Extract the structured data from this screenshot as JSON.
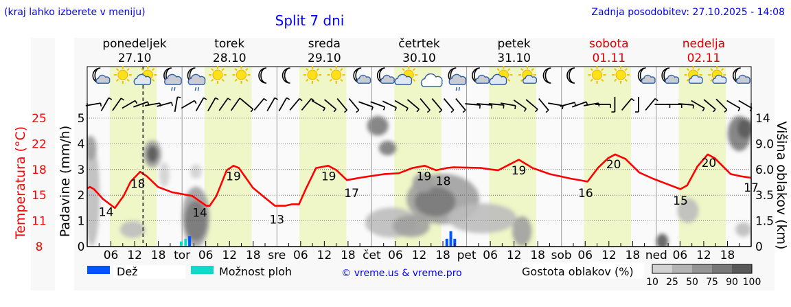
{
  "header": {
    "hint": "(kraj lahko izberete v meniju)",
    "title": "Split 7 dni",
    "updated": "Zadnja posodobitev: 27.10.2025 - 14:08"
  },
  "colors": {
    "rain": "#0055ff",
    "showers": "#11d9c9",
    "temp": "#ff0000",
    "day_band": "#eff7c8",
    "link": "#0000ff",
    "weekend": "#dd0000"
  },
  "chart_data": {
    "type": "line",
    "title": "Split 7 dni",
    "days": [
      {
        "name": "ponedeljek",
        "date": "27.10",
        "abbr": "",
        "weekend": false
      },
      {
        "name": "torek",
        "date": "28.10",
        "abbr": "tor",
        "weekend": false
      },
      {
        "name": "sreda",
        "date": "29.10",
        "abbr": "sre",
        "weekend": false
      },
      {
        "name": "četrtek",
        "date": "30.10",
        "abbr": "čet",
        "weekend": false
      },
      {
        "name": "petek",
        "date": "31.10",
        "abbr": "pet",
        "weekend": false
      },
      {
        "name": "sobota",
        "date": "01.11",
        "abbr": "sob",
        "weekend": true
      },
      {
        "name": "nedelja",
        "date": "02.11",
        "abbr": "ned",
        "weekend": true
      }
    ],
    "hour_ticks": [
      "06",
      "12",
      "18"
    ],
    "now_hour": 14.13,
    "daylight_hours": [
      5.7,
      17.6
    ],
    "y_left_temp": {
      "label": "Temperatura (°C)",
      "ticks": [
        "8",
        "11",
        "15",
        "18",
        "22",
        "25"
      ],
      "range": [
        8,
        25
      ]
    },
    "y_precip": {
      "label": "Padavine (mm/h)",
      "ticks": [
        "0",
        "1",
        "2",
        "3",
        "4",
        "5"
      ],
      "range": [
        0,
        5.2
      ]
    },
    "y_right_cloud": {
      "label": "Višina oblakov (km)",
      "ticks": [
        "0",
        "1.5",
        "3.5",
        "6.0",
        "9.0",
        "14"
      ],
      "km_values": [
        0,
        1.5,
        3.5,
        6,
        9,
        14
      ]
    },
    "temperature": {
      "hours": [
        0,
        0.7,
        1.7,
        4,
        7,
        9.2,
        11,
        13.4,
        15.1,
        17.9,
        21.4,
        26.6,
        30.1,
        31,
        32.7,
        35.3,
        37,
        38.4,
        41.9,
        44.9,
        47.5,
        50.1,
        51.8,
        53.6,
        55.3,
        57.9,
        61,
        63.1,
        65.7,
        70.1,
        75.3,
        78.8,
        82.3,
        85.4,
        88.3,
        91,
        92.7,
        99.7,
        102.3,
        104,
        106.6,
        109.2,
        112.7,
        117,
        122.3,
        126.6,
        129.2,
        131.8,
        133.6,
        136.2,
        139.7,
        143.1,
        146.6,
        150.1,
        151.8,
        154.4,
        157,
        158.8,
        162.8,
        165.4,
        168
      ],
      "values": [
        15.7,
        15.9,
        15.6,
        14.3,
        13.1,
        14.7,
        16.6,
        17.9,
        17.3,
        15.9,
        15.2,
        14.7,
        13.4,
        13.4,
        14.7,
        18.1,
        18.7,
        18.4,
        15.8,
        14.5,
        13.4,
        13.4,
        13.6,
        13.6,
        15.6,
        18.4,
        18.7,
        18.1,
        16.8,
        17.2,
        17.6,
        17.7,
        18.4,
        18.7,
        18.1,
        18.4,
        18.5,
        18.4,
        18.2,
        18.1,
        18.8,
        19.5,
        18.4,
        17.6,
        17.0,
        16.6,
        18.4,
        19.7,
        20.2,
        19.6,
        17.8,
        17.0,
        16.3,
        15.6,
        16.1,
        18.6,
        20.2,
        19.7,
        17.6,
        17.3,
        17.1
      ]
    },
    "temp_labels": [
      {
        "hour": 4.8,
        "text": "14",
        "t": 12.6
      },
      {
        "hour": 12.8,
        "text": "18",
        "t": 16.3
      },
      {
        "hour": 28.5,
        "text": "14",
        "t": 12.5
      },
      {
        "hour": 37.0,
        "text": "19",
        "t": 17.3
      },
      {
        "hour": 48.0,
        "text": "13",
        "t": 11.6
      },
      {
        "hour": 61.1,
        "text": "19",
        "t": 17.3
      },
      {
        "hour": 66.9,
        "text": "17",
        "t": 15.1
      },
      {
        "hour": 85.2,
        "text": "19",
        "t": 17.3
      },
      {
        "hour": 90.1,
        "text": "18",
        "t": 16.7
      },
      {
        "hour": 109.2,
        "text": "19",
        "t": 18.1
      },
      {
        "hour": 126.1,
        "text": "16",
        "t": 15.1
      },
      {
        "hour": 133.2,
        "text": "20",
        "t": 18.9
      },
      {
        "hour": 150.1,
        "text": "15",
        "t": 14.1
      },
      {
        "hour": 157.3,
        "text": "20",
        "t": 19.1
      },
      {
        "hour": 168.0,
        "text": "17",
        "t": 15.8
      }
    ],
    "precipitation": [
      {
        "hour": 23.8,
        "mm": 0.2,
        "type": "showers"
      },
      {
        "hour": 24.9,
        "mm": 0.3,
        "type": "showers"
      },
      {
        "hour": 25.9,
        "mm": 0.4,
        "type": "rain"
      },
      {
        "hour": 91.0,
        "mm": 0.3,
        "type": "rain"
      },
      {
        "hour": 92.0,
        "mm": 0.6,
        "type": "rain"
      },
      {
        "hour": 93.0,
        "mm": 0.3,
        "type": "rain"
      }
    ],
    "cloud_patches": [
      {
        "hour": 1.2,
        "km": 3.5,
        "dh": 2.5,
        "dkm_axis": 1.9,
        "density": 25
      },
      {
        "hour": 0.8,
        "km": 8.5,
        "dh": 1.8,
        "dkm_axis": 0.4,
        "density": 50
      },
      {
        "hour": 16.5,
        "km": 7.8,
        "dh": 3.2,
        "dkm_axis": 0.45,
        "density": 50
      },
      {
        "hour": 16.5,
        "km": 7.8,
        "dh": 1.4,
        "dkm_axis": 0.25,
        "density": 90
      },
      {
        "hour": 19.5,
        "km": 5.5,
        "dh": 1.2,
        "dkm_axis": 0.4,
        "density": 10
      },
      {
        "hour": 11.5,
        "km": 1.0,
        "dh": 5,
        "dkm_axis": 0.25,
        "density": 25
      },
      {
        "hour": 27.5,
        "km": 1.8,
        "dh": 5.5,
        "dkm_axis": 1.1,
        "density": 50
      },
      {
        "hour": 27.5,
        "km": 1.5,
        "dh": 4.2,
        "dkm_axis": 0.7,
        "density": 75
      },
      {
        "hour": 27.5,
        "km": 5.8,
        "dh": 1.5,
        "dkm_axis": 0.2,
        "density": 10
      },
      {
        "hour": 73.5,
        "km": 12.5,
        "dh": 4,
        "dkm_axis": 0.3,
        "density": 75
      },
      {
        "hour": 76,
        "km": 8.5,
        "dh": 3,
        "dkm_axis": 0.2,
        "density": 75
      },
      {
        "hour": 90,
        "km": 3.2,
        "dh": 17,
        "dkm_axis": 0.9,
        "density": 50
      },
      {
        "hour": 88,
        "km": 3.0,
        "dh": 9,
        "dkm_axis": 0.5,
        "density": 75
      },
      {
        "hour": 77,
        "km": 1.4,
        "dh": 12,
        "dkm_axis": 0.5,
        "density": 25
      },
      {
        "hour": 82,
        "km": 1.2,
        "dh": 8,
        "dkm_axis": 0.35,
        "density": 50
      },
      {
        "hour": 85,
        "km": 4.7,
        "dh": 4,
        "dkm_axis": 0.3,
        "density": 50
      },
      {
        "hour": 100,
        "km": 1.7,
        "dh": 16,
        "dkm_axis": 0.5,
        "density": 25
      },
      {
        "hour": 110,
        "km": 0.9,
        "dh": 3.5,
        "dkm_axis": 0.5,
        "density": 50
      },
      {
        "hour": 145.5,
        "km": 0.3,
        "dh": 1.6,
        "dkm_axis": 0.22,
        "density": 90
      },
      {
        "hour": 152,
        "km": 2.3,
        "dh": 4,
        "dkm_axis": 0.4,
        "density": 25
      },
      {
        "hour": 165,
        "km": 11,
        "dh": 4.5,
        "dkm_axis": 0.6,
        "density": 75
      },
      {
        "hour": 166.5,
        "km": 12,
        "dh": 2.5,
        "dkm_axis": 0.3,
        "density": 90
      },
      {
        "hour": 166,
        "km": 1.0,
        "dh": 2.5,
        "dkm_axis": 0.2,
        "density": 25
      }
    ],
    "weather_icons": [
      "moon-cloud",
      "sun",
      "sun-cloud",
      "moon-cloud-rain",
      "moon-cloud-rain",
      "sun",
      "sun",
      "moon",
      "moon",
      "sun",
      "sun",
      "moon-cloud",
      "moon-cloud",
      "sun-cloud",
      "cloud",
      "moon-cloud-rain",
      "moon-cloud",
      "sun-cloud",
      "sun-small-cloud",
      "moon",
      "moon",
      "sun",
      "sun",
      "moon-cloud",
      "moon-cloud",
      "sun-small-cloud",
      "sun-small-cloud",
      "moon-cloud"
    ],
    "wind_dir_deg": [
      80,
      30,
      35,
      60,
      70,
      80,
      75,
      10,
      60,
      30,
      30,
      35,
      35,
      130,
      40,
      30,
      30,
      40,
      40,
      120,
      130,
      140,
      140,
      110,
      110,
      115,
      120,
      130,
      140,
      140,
      140,
      140,
      95,
      95,
      95,
      100,
      125,
      130,
      140,
      100,
      75,
      70,
      80,
      90,
      180,
      40,
      180,
      40,
      90,
      90,
      95,
      120,
      130,
      135,
      120,
      120
    ],
    "legend": {
      "rain": "Dež",
      "showers": "Možnost ploh",
      "copyright": "© vreme.us & vreme.pro",
      "cloud_density": "Gostota oblakov (%)",
      "density_ticks": [
        "10",
        "25",
        "50",
        "75",
        "90",
        "100"
      ]
    }
  }
}
